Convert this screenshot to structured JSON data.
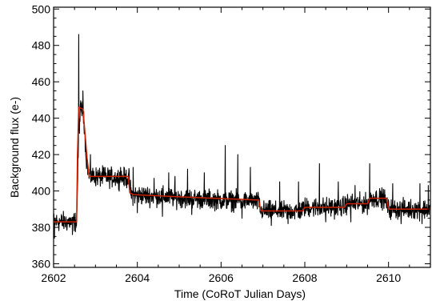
{
  "chart_data": {
    "type": "line",
    "xlabel": "Time (CoRoT Julian Days)",
    "ylabel": "Background flux (e-)",
    "xlim": [
      2602,
      2611
    ],
    "ylim": [
      358,
      501
    ],
    "x_ticks": [
      "2602",
      "2604",
      "2606",
      "2608",
      "2610"
    ],
    "y_ticks": [
      "360",
      "380",
      "400",
      "420",
      "440",
      "460",
      "480",
      "500"
    ],
    "grid": false,
    "legend": "none",
    "series": [
      {
        "color": "#000000",
        "style": "noisy measured background (dense sampling)",
        "baseline": [
          [
            2602.0,
            383
          ],
          [
            2602.55,
            383
          ],
          [
            2602.6,
            432
          ],
          [
            2602.65,
            446
          ],
          [
            2602.72,
            442
          ],
          [
            2602.78,
            418
          ],
          [
            2602.85,
            408
          ],
          [
            2603.8,
            407
          ],
          [
            2603.85,
            398
          ],
          [
            2605.2,
            396
          ],
          [
            2606.0,
            395
          ],
          [
            2606.9,
            394
          ],
          [
            2606.95,
            389
          ],
          [
            2607.9,
            389
          ],
          [
            2608.0,
            391
          ],
          [
            2608.9,
            391
          ],
          [
            2609.0,
            393
          ],
          [
            2609.5,
            393
          ],
          [
            2609.6,
            396
          ],
          [
            2609.9,
            396
          ],
          [
            2610.0,
            390
          ],
          [
            2611.0,
            390
          ]
        ],
        "spikes": [
          [
            2602.6,
            486
          ],
          [
            2602.7,
            455
          ],
          [
            2602.88,
            420
          ],
          [
            2603.2,
            413
          ],
          [
            2603.6,
            413
          ],
          [
            2603.9,
            413
          ],
          [
            2604.4,
            407
          ],
          [
            2604.75,
            410
          ],
          [
            2604.9,
            408
          ],
          [
            2605.2,
            412
          ],
          [
            2605.6,
            410
          ],
          [
            2606.1,
            425
          ],
          [
            2606.4,
            420
          ],
          [
            2606.7,
            413
          ],
          [
            2607.4,
            405
          ],
          [
            2607.85,
            405
          ],
          [
            2608.35,
            415
          ],
          [
            2608.8,
            405
          ],
          [
            2609.2,
            403
          ],
          [
            2609.55,
            415
          ],
          [
            2610.1,
            404
          ],
          [
            2610.75,
            404
          ],
          [
            2610.95,
            403
          ]
        ],
        "dips": [
          [
            2602.02,
            374
          ],
          [
            2602.45,
            376
          ],
          [
            2604.0,
            388
          ],
          [
            2604.6,
            386
          ],
          [
            2605.3,
            387
          ],
          [
            2606.5,
            385
          ],
          [
            2607.2,
            381
          ],
          [
            2607.6,
            382
          ],
          [
            2608.5,
            383
          ],
          [
            2609.1,
            383
          ],
          [
            2610.3,
            382
          ],
          [
            2610.8,
            382
          ]
        ]
      },
      {
        "color": "#cc2200",
        "style": "smoothed step fit",
        "points": [
          [
            2602.0,
            383
          ],
          [
            2602.55,
            383
          ],
          [
            2602.57,
            420
          ],
          [
            2602.6,
            446
          ],
          [
            2602.7,
            445
          ],
          [
            2602.75,
            432
          ],
          [
            2602.8,
            418
          ],
          [
            2602.85,
            408
          ],
          [
            2603.78,
            408
          ],
          [
            2603.82,
            399
          ],
          [
            2603.9,
            398
          ],
          [
            2604.8,
            397
          ],
          [
            2605.8,
            396
          ],
          [
            2606.9,
            395
          ],
          [
            2606.95,
            389
          ],
          [
            2607.95,
            389
          ],
          [
            2608.0,
            391
          ],
          [
            2608.95,
            391
          ],
          [
            2609.0,
            393
          ],
          [
            2609.5,
            393
          ],
          [
            2609.55,
            396
          ],
          [
            2609.95,
            396
          ],
          [
            2610.0,
            390
          ],
          [
            2611.0,
            390
          ]
        ]
      }
    ]
  }
}
